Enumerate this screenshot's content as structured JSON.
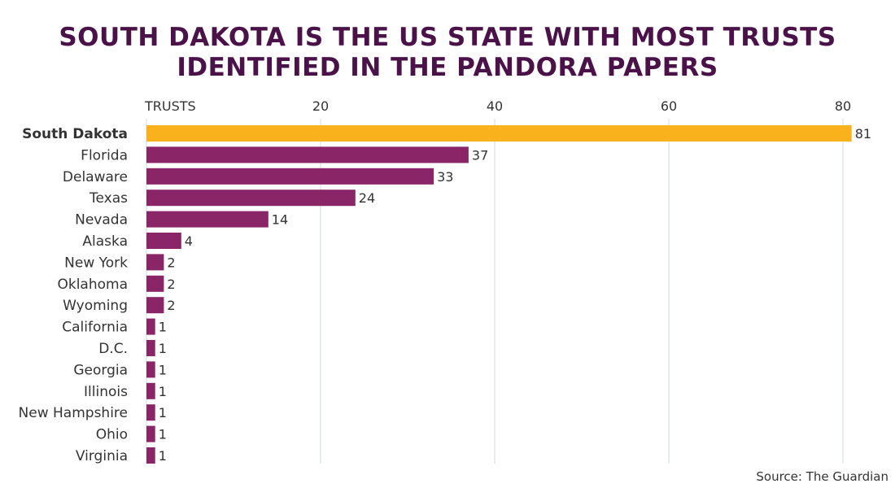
{
  "chart_data": {
    "type": "bar",
    "orientation": "horizontal",
    "title_lines": [
      "SOUTH DAKOTA IS THE US STATE WITH MOST TRUSTS",
      "IDENTIFIED IN THE PANDORA PAPERS"
    ],
    "axis_label": "TRUSTS",
    "x_ticks": [
      20,
      40,
      60,
      80
    ],
    "xlim": [
      0,
      84
    ],
    "grid": true,
    "categories": [
      "South Dakota",
      "Florida",
      "Delaware",
      "Texas",
      "Nevada",
      "Alaska",
      "New York",
      "Oklahoma",
      "Wyoming",
      "California",
      "D.C.",
      "Georgia",
      "Illinois",
      "New Hampshire",
      "Ohio",
      "Virginia"
    ],
    "values": [
      81,
      37,
      33,
      24,
      14,
      4,
      2,
      2,
      2,
      1,
      1,
      1,
      1,
      1,
      1,
      1
    ],
    "highlight": "South Dakota",
    "colors": {
      "highlight": "#f9b21c",
      "bar": "#8a2568",
      "title": "#4a1248",
      "grid": "#cfdbe3",
      "text": "#333333"
    }
  },
  "source": "Source: The Guardian"
}
